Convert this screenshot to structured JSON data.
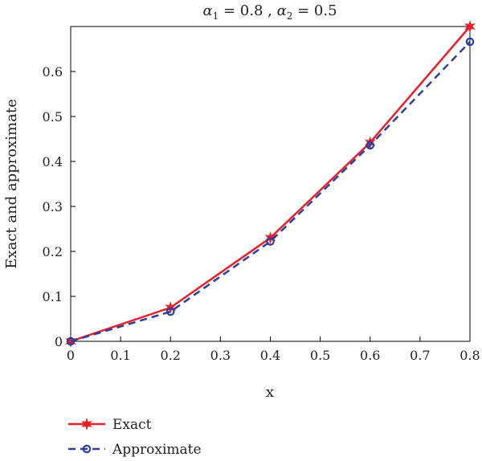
{
  "chart_data": {
    "type": "line",
    "title": {
      "alpha1_symbol": "α",
      "alpha1_sub": "1",
      "alpha1_value": " = 0.8 , ",
      "alpha2_symbol": "α",
      "alpha2_sub": "2",
      "alpha2_value": " = 0.5"
    },
    "xlabel": "x",
    "ylabel": "Exact and approximate",
    "xlim": [
      0,
      0.8
    ],
    "ylim": [
      0,
      0.7
    ],
    "xticks": [
      "0",
      "0.1",
      "0.2",
      "0.3",
      "0.4",
      "0.5",
      "0.6",
      "0.7",
      "0.8"
    ],
    "yticks": [
      "0",
      "0.1",
      "0.2",
      "0.3",
      "0.4",
      "0.5",
      "0.6"
    ],
    "grid": false,
    "legend_position": "bottom-left, below plot",
    "series": [
      {
        "name": "Exact",
        "color": "#e8202a",
        "line_style": "solid",
        "marker": "star",
        "x": [
          0,
          0.2,
          0.4,
          0.6,
          0.8
        ],
        "y": [
          0,
          0.075,
          0.23,
          0.442,
          0.7
        ]
      },
      {
        "name": "Approximate",
        "color": "#2b3f9e",
        "line_style": "dashed",
        "marker": "circle",
        "x": [
          0,
          0.2,
          0.4,
          0.6,
          0.8
        ],
        "y": [
          0,
          0.066,
          0.222,
          0.436,
          0.666
        ]
      }
    ]
  }
}
